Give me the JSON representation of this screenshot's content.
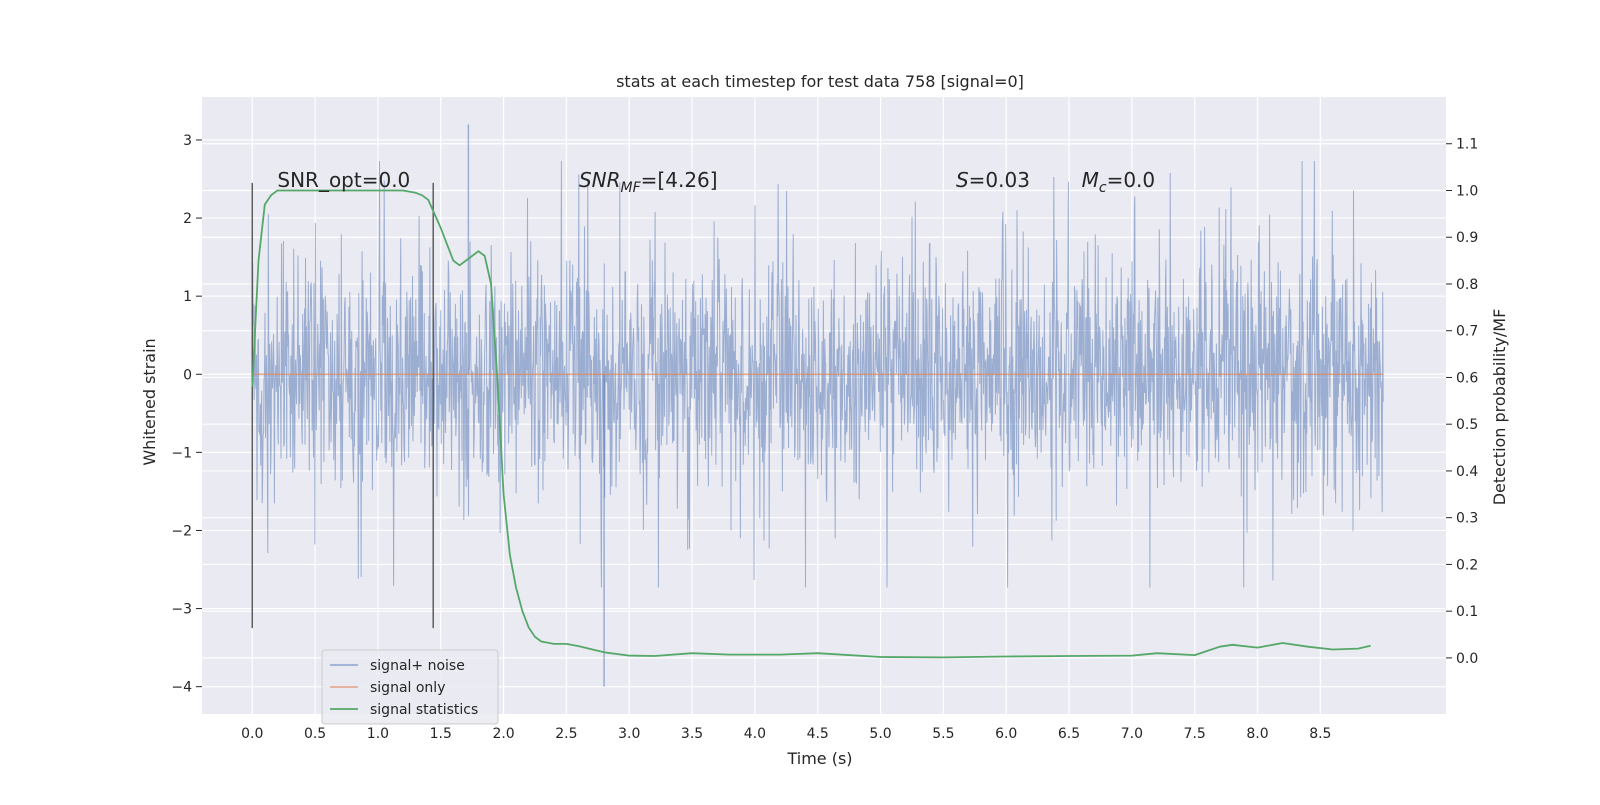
{
  "chart_data": {
    "type": "line",
    "title": "stats at each timestep for test data 758 [signal=0]",
    "xlabel": "Time (s)",
    "ylabel": "Whitened strain",
    "y2label": "Detection probability/MF",
    "xlim": [
      -0.4,
      9.5
    ],
    "ylim": [
      -4.35,
      3.55
    ],
    "y2lim": [
      -0.12,
      1.2
    ],
    "x_ticks": [
      0.0,
      0.5,
      1.0,
      1.5,
      2.0,
      2.5,
      3.0,
      3.5,
      4.0,
      4.5,
      5.0,
      5.5,
      6.0,
      6.5,
      7.0,
      7.5,
      8.0,
      8.5
    ],
    "x_tick_labels": [
      "0.0",
      "0.5",
      "1.0",
      "1.5",
      "2.0",
      "2.5",
      "3.0",
      "3.5",
      "4.0",
      "4.5",
      "5.0",
      "5.5",
      "6.0",
      "6.5",
      "7.0",
      "7.5",
      "8.0",
      "8.5"
    ],
    "y_ticks": [
      3,
      2,
      1,
      0,
      -1,
      -2,
      -3,
      -4
    ],
    "y_tick_labels": [
      "3",
      "2",
      "1",
      "0",
      "−1",
      "−2",
      "−3",
      "−4"
    ],
    "y2_ticks": [
      1.1,
      1.0,
      0.9,
      0.8,
      0.7,
      0.6,
      0.5,
      0.4,
      0.3,
      0.2,
      0.1,
      0.0
    ],
    "y2_tick_labels": [
      "1.1",
      "1.0",
      "0.9",
      "0.8",
      "0.7",
      "0.6",
      "0.5",
      "0.4",
      "0.3",
      "0.2",
      "0.1",
      "0.0"
    ],
    "grid": true,
    "legend_position": "lower-left",
    "series": [
      {
        "name": "signal+ noise",
        "color": "#4c72b0",
        "axis": "left",
        "x_range": [
          0.0,
          9.0
        ],
        "typical_amplitude": 1.3,
        "peak_max": 3.2,
        "peak_min": -4.0
      },
      {
        "name": "signal only",
        "color": "#dd8452",
        "axis": "left",
        "x": [
          0.0,
          9.0
        ],
        "y": [
          0.0,
          0.0
        ]
      },
      {
        "name": "signal statistics",
        "color": "#55a868",
        "axis": "right",
        "x": [
          0.0,
          0.05,
          0.1,
          0.15,
          0.2,
          0.3,
          0.5,
          0.8,
          1.0,
          1.2,
          1.3,
          1.35,
          1.4,
          1.5,
          1.6,
          1.65,
          1.7,
          1.75,
          1.8,
          1.85,
          1.9,
          1.95,
          2.0,
          2.05,
          2.1,
          2.15,
          2.2,
          2.25,
          2.3,
          2.4,
          2.5,
          2.6,
          2.8,
          3.0,
          3.2,
          3.5,
          3.8,
          4.2,
          4.5,
          5.0,
          5.5,
          6.0,
          6.5,
          7.0,
          7.2,
          7.5,
          7.7,
          7.8,
          8.0,
          8.2,
          8.4,
          8.6,
          8.8,
          8.9
        ],
        "y": [
          0.58,
          0.85,
          0.97,
          0.99,
          1.0,
          1.0,
          1.0,
          1.0,
          1.0,
          1.0,
          0.995,
          0.99,
          0.98,
          0.92,
          0.85,
          0.84,
          0.85,
          0.86,
          0.87,
          0.86,
          0.8,
          0.6,
          0.35,
          0.22,
          0.15,
          0.1,
          0.065,
          0.045,
          0.035,
          0.03,
          0.03,
          0.025,
          0.012,
          0.005,
          0.004,
          0.01,
          0.007,
          0.007,
          0.01,
          0.002,
          0.001,
          0.003,
          0.004,
          0.005,
          0.01,
          0.006,
          0.024,
          0.028,
          0.022,
          0.032,
          0.024,
          0.018,
          0.02,
          0.026
        ]
      }
    ],
    "vertical_lines": [
      {
        "x": 0.0,
        "y_range": [
          -3.25,
          2.45
        ]
      },
      {
        "x": 1.44,
        "y_range": [
          -3.25,
          2.45
        ]
      }
    ],
    "annotations": [
      {
        "name": "snr-opt",
        "text": "SNR_opt=0.0",
        "x": 0.2,
        "y": 2.4
      },
      {
        "name": "snr-mf",
        "base": "SNR",
        "sub": "MF",
        "rest": "=[4.26]",
        "x": 2.6,
        "y": 2.4
      },
      {
        "name": "s-stat",
        "base": "S",
        "rest": "=0.03",
        "x": 5.6,
        "y": 2.4
      },
      {
        "name": "chirp-mass",
        "base": "M",
        "sub": "c",
        "rest": "=0.0",
        "x": 6.6,
        "y": 2.4
      }
    ],
    "legend": [
      {
        "label": "signal+ noise",
        "color": "#4c72b0",
        "alpha": 0.5
      },
      {
        "label": "signal only",
        "color": "#dd8452",
        "alpha": 0.6
      },
      {
        "label": "signal statistics",
        "color": "#55a868",
        "alpha": 1
      }
    ]
  }
}
